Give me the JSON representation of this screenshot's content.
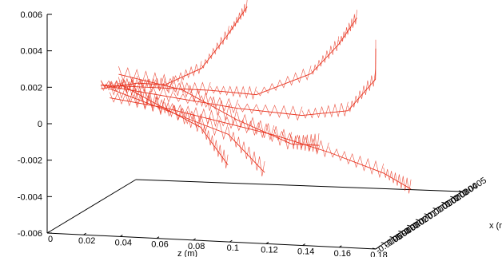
{
  "chart_data": {
    "type": "line",
    "projection": "3d",
    "axes": {
      "z": {
        "label": "z (m)",
        "range": [
          0,
          0.18
        ],
        "ticks": [
          "0",
          "0.02",
          "0.04",
          "0.06",
          "0.08",
          "0.1",
          "0.12",
          "0.14",
          "0.16",
          "0.18"
        ]
      },
      "x": {
        "label": "x (m)",
        "range": [
          -0.0005,
          0.0005
        ],
        "ticks": [
          "-0.0005",
          "-0.0004",
          "-0.0003",
          "-0.0002",
          "-0.0001",
          "0",
          "0.0001",
          "0.0002",
          "0.0003",
          "0.0004",
          "0.0005"
        ]
      },
      "y": {
        "label": "",
        "range": [
          -0.006,
          0.006
        ],
        "ticks": [
          "-0.006",
          "-0.004",
          "-0.002",
          "0",
          "0.002",
          "0.004",
          "0.006"
        ]
      }
    },
    "series_color": "#e8321e",
    "series": [
      {
        "points": [
          [
            0.01,
            0.0001,
            0.0008
          ],
          [
            0.03,
            0.0001,
            0.0012
          ],
          [
            0.05,
            0.0002,
            0.0015
          ],
          [
            0.07,
            0.0002,
            0.0025
          ],
          [
            0.085,
            0.0002,
            0.0045
          ],
          [
            0.095,
            0.0002,
            0.006
          ]
        ]
      },
      {
        "points": [
          [
            0.01,
            0.0001,
            0.001
          ],
          [
            0.04,
            0.0001,
            0.001
          ],
          [
            0.07,
            0.0001,
            0.001
          ],
          [
            0.1,
            0.0002,
            0.0012
          ],
          [
            0.13,
            0.0002,
            0.0025
          ],
          [
            0.15,
            0.0003,
            0.0045
          ],
          [
            0.16,
            0.0003,
            0.006
          ]
        ]
      },
      {
        "points": [
          [
            0.01,
            0.0001,
            0.001
          ],
          [
            0.05,
            0.0001,
            0.0005
          ],
          [
            0.09,
            0.0002,
            0.0004
          ],
          [
            0.13,
            0.0003,
            0.0005
          ],
          [
            0.16,
            0.0004,
            0.0012
          ],
          [
            0.175,
            0.0004,
            0.003
          ],
          [
            0.18,
            0.0005,
            0.005
          ]
        ]
      },
      {
        "points": [
          [
            0.01,
            0.0,
            0.0
          ],
          [
            0.04,
            0.0,
            -0.0004
          ],
          [
            0.07,
            0.0,
            -0.001
          ],
          [
            0.1,
            0.0,
            -0.0016
          ],
          [
            0.13,
            0.0,
            -0.0024
          ],
          [
            0.16,
            0.0,
            -0.0034
          ],
          [
            0.175,
            0.0,
            -0.0042
          ]
        ]
      },
      {
        "points": [
          [
            0.01,
            -0.0001,
            0.0005
          ],
          [
            0.03,
            -0.0001,
            -0.0005
          ],
          [
            0.05,
            -0.0002,
            -0.002
          ],
          [
            0.065,
            -0.0002,
            -0.004
          ]
        ]
      },
      {
        "points": [
          [
            0.01,
            0.0,
            0.0005
          ],
          [
            0.04,
            0.0,
            -0.0005
          ],
          [
            0.07,
            -0.0001,
            -0.002
          ],
          [
            0.09,
            -0.0001,
            -0.004
          ]
        ]
      },
      {
        "points": [
          [
            0.01,
            -0.0001,
            0.001
          ],
          [
            0.04,
            -0.0002,
            0.0
          ],
          [
            0.07,
            -0.0002,
            -0.0015
          ],
          [
            0.095,
            -0.0003,
            -0.003
          ],
          [
            0.11,
            -0.0003,
            -0.003
          ]
        ]
      }
    ]
  }
}
